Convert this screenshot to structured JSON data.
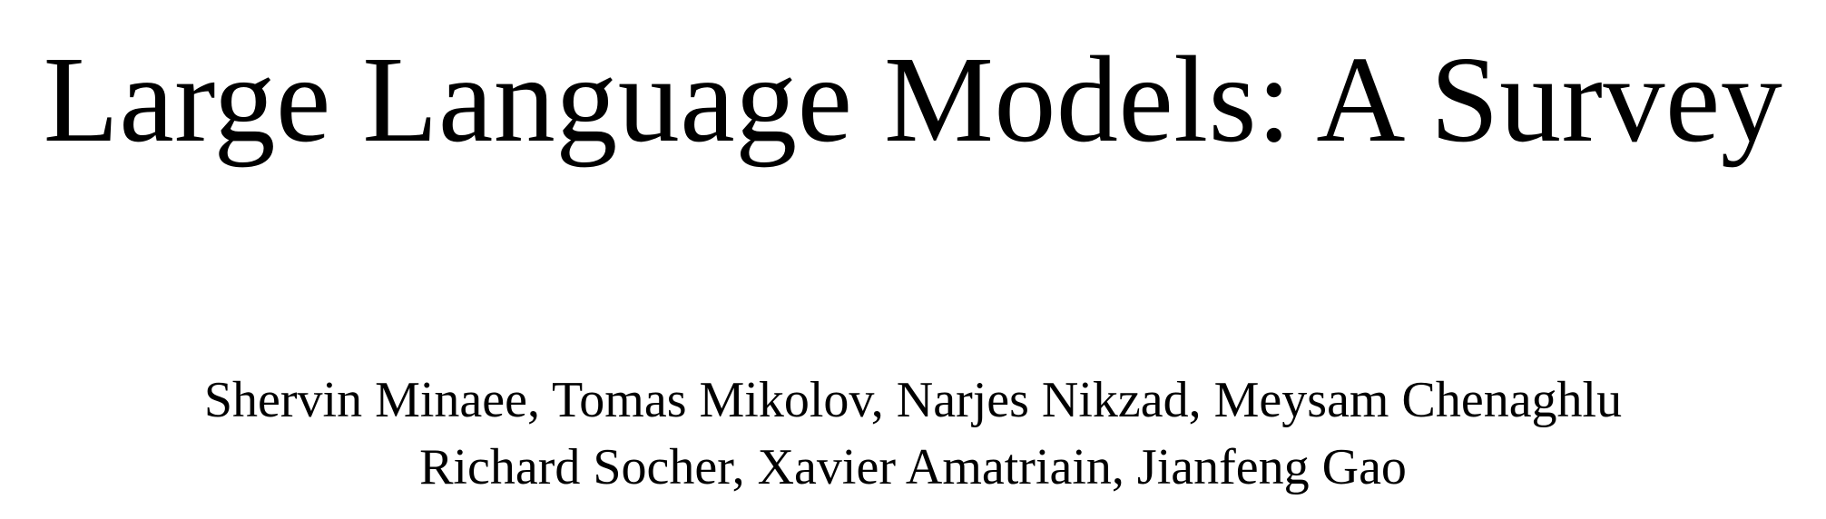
{
  "paper": {
    "title": "Large Language Models: A Survey",
    "authors": {
      "line1": "Shervin Minaee, Tomas Mikolov, Narjes Nikzad, Meysam Chenaghlu",
      "line2": "Richard Socher, Xavier Amatriain, Jianfeng Gao"
    }
  },
  "colors": {
    "text": "#000000",
    "background": "#ffffff"
  }
}
